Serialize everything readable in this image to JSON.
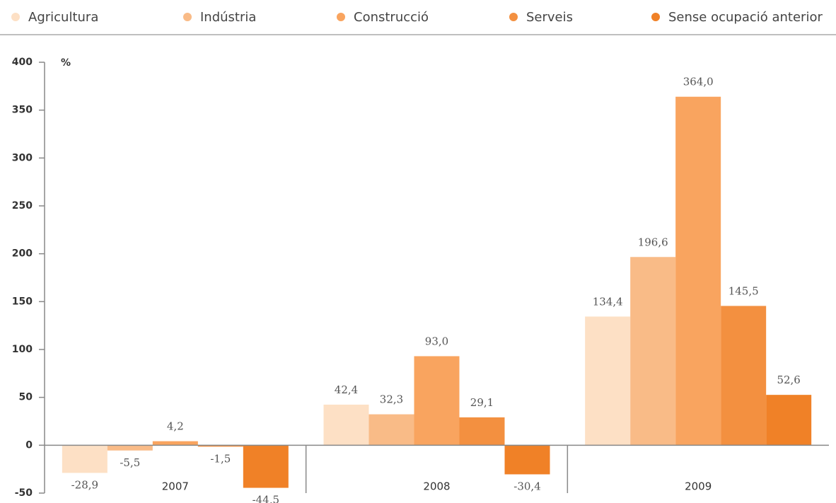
{
  "chart_data": {
    "type": "bar",
    "y_unit": "%",
    "categories": [
      "2007",
      "2008",
      "2009"
    ],
    "series": [
      {
        "name": "Agricultura",
        "color": "#fde0c5",
        "values": [
          -28.9,
          42.4,
          134.4
        ],
        "value_labels": [
          "-28,9",
          "42,4",
          "134,4"
        ]
      },
      {
        "name": "Indústria",
        "color": "#f9bb87",
        "values": [
          -5.5,
          32.3,
          196.6
        ],
        "value_labels": [
          "-5,5",
          "32,3",
          "196,6"
        ]
      },
      {
        "name": "Construcció",
        "color": "#f9a45f",
        "values": [
          4.2,
          93.0,
          364.0
        ],
        "value_labels": [
          "4,2",
          "93,0",
          "364,0"
        ]
      },
      {
        "name": "Serveis",
        "color": "#f39040",
        "values": [
          -1.5,
          29.1,
          145.5
        ],
        "value_labels": [
          "-1,5",
          "29,1",
          "145,5"
        ]
      },
      {
        "name": "Sense ocupació anterior",
        "color": "#f08127",
        "values": [
          -44.5,
          -30.4,
          52.6
        ],
        "value_labels": [
          "-44,5",
          "-30,4",
          "52,6"
        ]
      }
    ],
    "ylim": [
      -50,
      400
    ],
    "yticks": [
      -50,
      0,
      50,
      100,
      150,
      200,
      250,
      300,
      350,
      400
    ]
  }
}
